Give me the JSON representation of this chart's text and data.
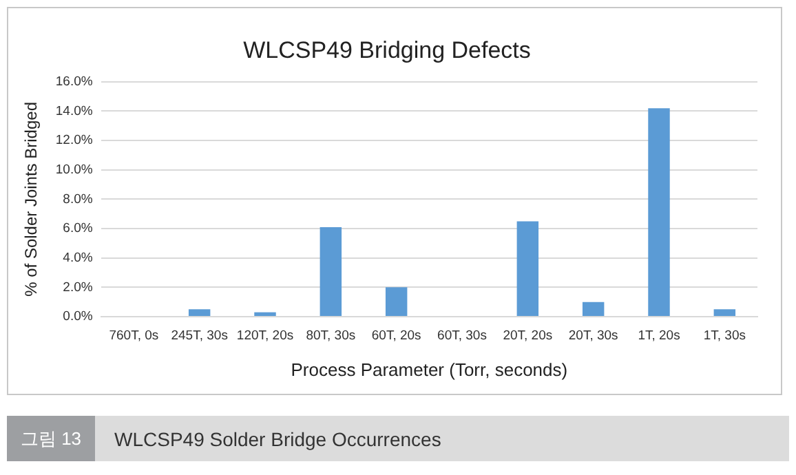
{
  "chart_data": {
    "type": "bar",
    "title": "WLCSP49 Bridging Defects",
    "xlabel": "Process Parameter (Torr, seconds)",
    "ylabel": "% of Solder Joints Bridged",
    "categories": [
      "760T, 0s",
      "245T, 30s",
      "120T, 20s",
      "80T, 30s",
      "60T, 20s",
      "60T, 30s",
      "20T, 20s",
      "20T, 30s",
      "1T, 20s",
      "1T, 30s"
    ],
    "values": [
      0,
      0.5,
      0.3,
      6.1,
      2.0,
      0,
      6.5,
      1.0,
      14.2,
      0.5
    ],
    "color": "#5b9bd5",
    "ylim": [
      0,
      16
    ],
    "yticks": [
      {
        "value": 0,
        "label": "0.0%"
      },
      {
        "value": 2,
        "label": "2.0%"
      },
      {
        "value": 4,
        "label": "4.0%"
      },
      {
        "value": 6,
        "label": "6.0%"
      },
      {
        "value": 8,
        "label": "8.0%"
      },
      {
        "value": 10,
        "label": "10.0%"
      },
      {
        "value": 12,
        "label": "12.0%"
      },
      {
        "value": 14,
        "label": "14.0%"
      },
      {
        "value": 16,
        "label": "16.0%"
      }
    ],
    "grid": "y",
    "legend": false,
    "annotations": [
      "그림 13",
      "WLCSP49 Solder Bridge Occurrences"
    ]
  }
}
